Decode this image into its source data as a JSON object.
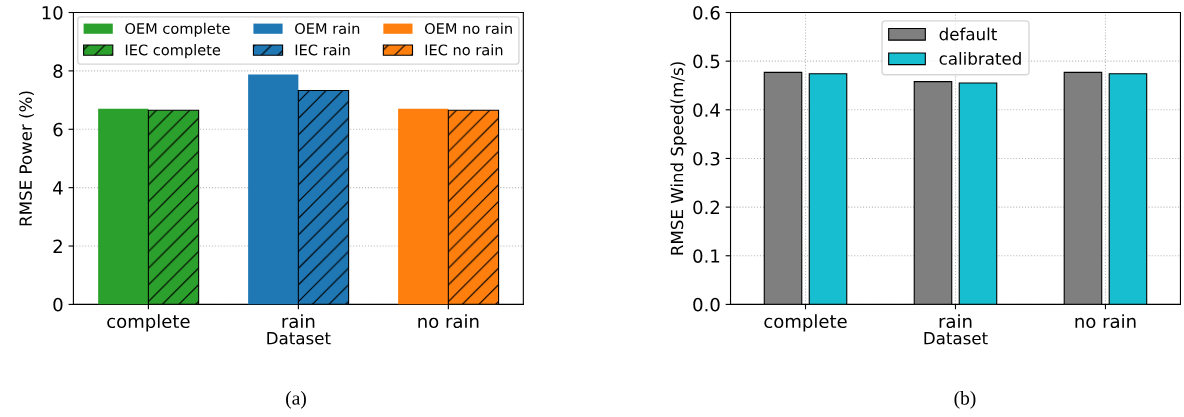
{
  "chart_data": [
    {
      "type": "bar",
      "xlabel": "Dataset",
      "ylabel": "RMSE Power (%)",
      "categories": [
        "complete",
        "rain",
        "no rain"
      ],
      "ylim": [
        0,
        10
      ],
      "yticks": [
        0,
        2,
        4,
        6,
        8,
        10
      ],
      "grid": "y",
      "legend": "top",
      "annotations": [
        "(a)"
      ],
      "series": [
        {
          "name": "OEM complete",
          "color": "#2ca02c",
          "values": [
            6.7,
            null,
            null
          ]
        },
        {
          "name": "IEC complete",
          "color": "#2ca02c",
          "values": [
            6.65,
            null,
            null
          ]
        },
        {
          "name": "OEM rain",
          "color": "#1f77b4",
          "values": [
            null,
            7.88,
            null
          ]
        },
        {
          "name": "IEC rain",
          "color": "#1f77b4",
          "values": [
            null,
            7.33,
            null
          ]
        },
        {
          "name": "OEM no rain",
          "color": "#ff7f0e",
          "values": [
            null,
            null,
            6.7
          ]
        },
        {
          "name": "IEC no rain",
          "color": "#ff7f0e",
          "values": [
            null,
            null,
            6.65
          ]
        }
      ]
    },
    {
      "type": "bar",
      "xlabel": "Dataset",
      "ylabel": "RMSE Wind Speed(m/s)",
      "categories": [
        "complete",
        "rain",
        "no rain"
      ],
      "ylim": [
        0,
        0.6
      ],
      "yticks": [
        {
          "value": 0,
          "label": "0.0"
        },
        0.1,
        0.2,
        0.3,
        0.4,
        0.5,
        0.6
      ],
      "grid": true,
      "legend": "top",
      "annotations": [
        "(b)"
      ],
      "series": [
        {
          "name": "default",
          "color": "#7f7f7f",
          "values": [
            0.477,
            0.458,
            0.477
          ]
        },
        {
          "name": "calibrated",
          "color": "#17becf",
          "values": [
            0.474,
            0.455,
            0.474
          ]
        }
      ]
    }
  ]
}
